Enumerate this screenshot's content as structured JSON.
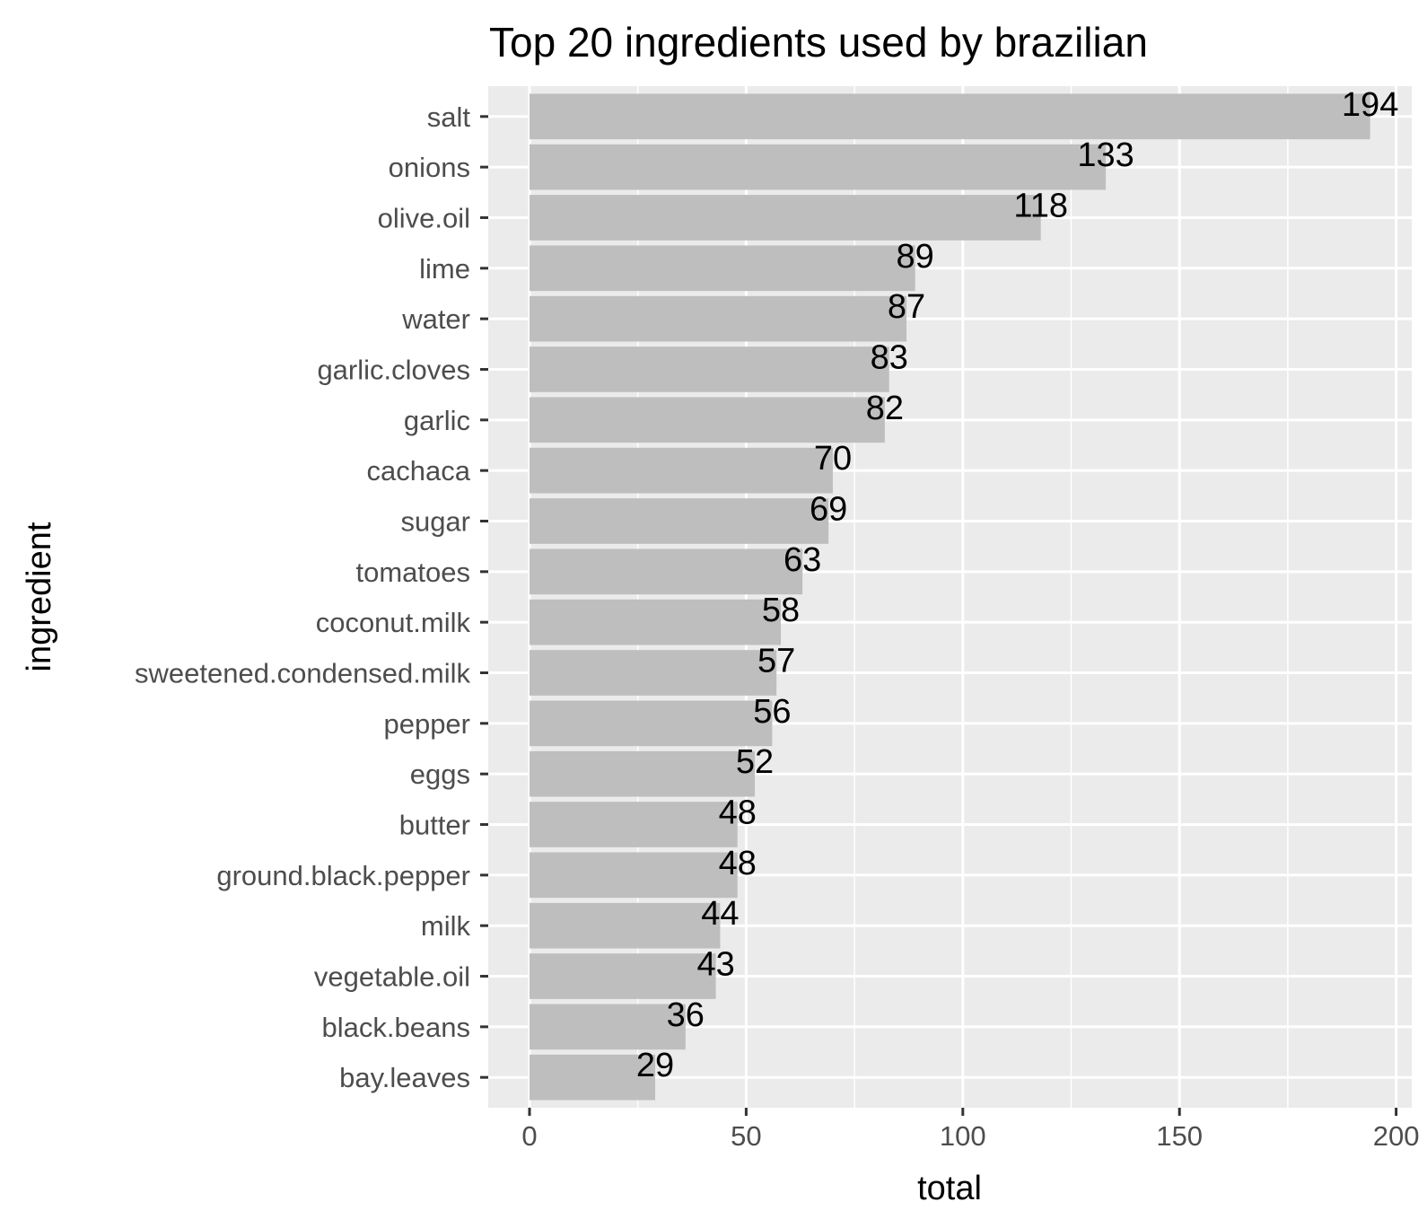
{
  "chart_data": {
    "type": "bar",
    "orientation": "horizontal",
    "title": "Top 20 ingredients used by brazilian",
    "xlabel": "total",
    "ylabel": "ingredient",
    "xlim": [
      0,
      200
    ],
    "x_ticks": [
      0,
      50,
      100,
      150,
      200
    ],
    "grid": true,
    "legend": "none",
    "colors": {
      "bar": "#bebebe",
      "panel": "#ebebeb",
      "grid": "#ffffff",
      "tick": "#333333"
    },
    "categories": [
      "salt",
      "onions",
      "olive.oil",
      "lime",
      "water",
      "garlic.cloves",
      "garlic",
      "cachaca",
      "sugar",
      "tomatoes",
      "coconut.milk",
      "sweetened.condensed.milk",
      "pepper",
      "eggs",
      "butter",
      "ground.black.pepper",
      "milk",
      "vegetable.oil",
      "black.beans",
      "bay.leaves"
    ],
    "values": [
      194,
      133,
      118,
      89,
      87,
      83,
      82,
      70,
      69,
      63,
      58,
      57,
      56,
      52,
      48,
      48,
      44,
      43,
      36,
      29
    ]
  }
}
